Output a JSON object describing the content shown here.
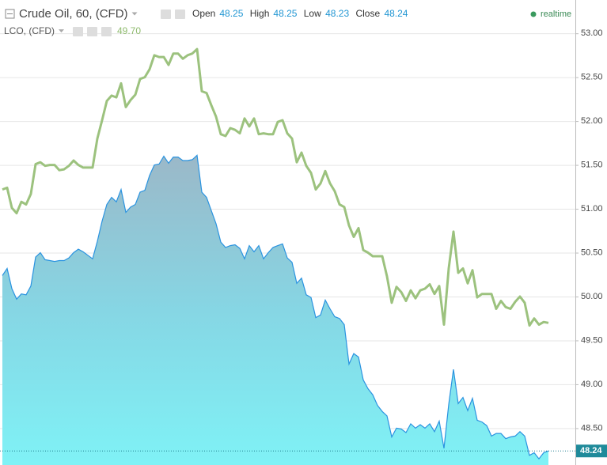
{
  "chart_data": {
    "type": "area",
    "series": [
      {
        "name": "Crude Oil, 60, (CFD)",
        "type": "area",
        "color": "#2a93e0",
        "values": [
          50.24,
          50.32,
          50.09,
          49.97,
          50.03,
          50.02,
          50.12,
          50.45,
          50.5,
          50.42,
          50.41,
          50.4,
          50.41,
          50.41,
          50.44,
          50.5,
          50.54,
          50.51,
          50.47,
          50.43,
          50.63,
          50.86,
          51.05,
          51.13,
          51.08,
          51.22,
          50.96,
          51.02,
          51.05,
          51.19,
          51.21,
          51.38,
          51.5,
          51.51,
          51.6,
          51.52,
          51.59,
          51.59,
          51.55,
          51.55,
          51.56,
          51.61,
          51.19,
          51.13,
          50.98,
          50.83,
          50.62,
          50.56,
          50.58,
          50.59,
          50.55,
          50.43,
          50.58,
          50.51,
          50.58,
          50.43,
          50.5,
          50.56,
          50.58,
          50.6,
          50.44,
          50.39,
          50.15,
          50.21,
          50.02,
          49.99,
          49.76,
          49.79,
          49.96,
          49.86,
          49.77,
          49.75,
          49.68,
          49.23,
          49.35,
          49.31,
          49.05,
          48.95,
          48.88,
          48.76,
          48.69,
          48.64,
          48.4,
          48.5,
          48.49,
          48.45,
          48.55,
          48.5,
          48.54,
          48.5,
          48.55,
          48.46,
          48.58,
          48.27,
          48.77,
          49.17,
          48.78,
          48.85,
          48.7,
          48.84,
          48.59,
          48.57,
          48.53,
          48.41,
          48.44,
          48.44,
          48.38,
          48.4,
          48.41,
          48.46,
          48.41,
          48.19,
          48.22,
          48.15,
          48.22,
          48.24
        ]
      },
      {
        "name": "LCO, (CFD)",
        "type": "line",
        "color": "#9cc27e",
        "status_value": "49.70",
        "values": [
          51.22,
          51.24,
          51.01,
          50.95,
          51.08,
          51.05,
          51.17,
          51.51,
          51.53,
          51.49,
          51.5,
          51.5,
          51.44,
          51.45,
          51.49,
          51.55,
          51.5,
          51.47,
          51.47,
          51.47,
          51.8,
          52.01,
          52.23,
          52.29,
          52.27,
          52.43,
          52.16,
          52.24,
          52.3,
          52.48,
          52.5,
          52.59,
          52.75,
          52.73,
          52.73,
          52.64,
          52.77,
          52.77,
          52.71,
          52.75,
          52.77,
          52.82,
          52.34,
          52.32,
          52.18,
          52.05,
          51.85,
          51.83,
          51.92,
          51.9,
          51.86,
          52.03,
          51.94,
          52.03,
          51.85,
          51.86,
          51.85,
          51.85,
          51.99,
          52.01,
          51.86,
          51.8,
          51.53,
          51.64,
          51.49,
          51.41,
          51.22,
          51.29,
          51.43,
          51.29,
          51.2,
          51.05,
          51.02,
          50.81,
          50.68,
          50.78,
          50.53,
          50.5,
          50.46,
          50.46,
          50.46,
          50.23,
          49.93,
          50.11,
          50.05,
          49.95,
          50.07,
          49.98,
          50.07,
          50.09,
          50.14,
          50.03,
          50.12,
          49.68,
          50.32,
          50.74,
          50.27,
          50.32,
          50.15,
          50.3,
          49.99,
          50.03,
          50.03,
          50.03,
          49.86,
          49.95,
          49.88,
          49.86,
          49.94,
          50.0,
          49.93,
          49.67,
          49.75,
          49.68,
          49.71,
          49.7
        ]
      }
    ],
    "ohlc": [
      {
        "label": "Open",
        "value": "48.25"
      },
      {
        "label": "High",
        "value": "48.25"
      },
      {
        "label": "Low",
        "value": "48.23"
      },
      {
        "label": "Close",
        "value": "48.24"
      }
    ],
    "status": "realtime",
    "ylim": [
      48.08,
      53.38
    ],
    "yticks": [
      {
        "value": 48.5,
        "label": "48.50"
      },
      {
        "value": 49,
        "label": "49.00"
      },
      {
        "value": 49.5,
        "label": "49.50"
      },
      {
        "value": 50,
        "label": "50.00"
      },
      {
        "value": 50.5,
        "label": "50.50"
      },
      {
        "value": 51,
        "label": "51.00"
      },
      {
        "value": 51.5,
        "label": "51.50"
      },
      {
        "value": 52,
        "label": "52.00"
      },
      {
        "value": 52.5,
        "label": "52.50"
      },
      {
        "value": 53,
        "label": "53.00"
      }
    ],
    "grid": true
  }
}
